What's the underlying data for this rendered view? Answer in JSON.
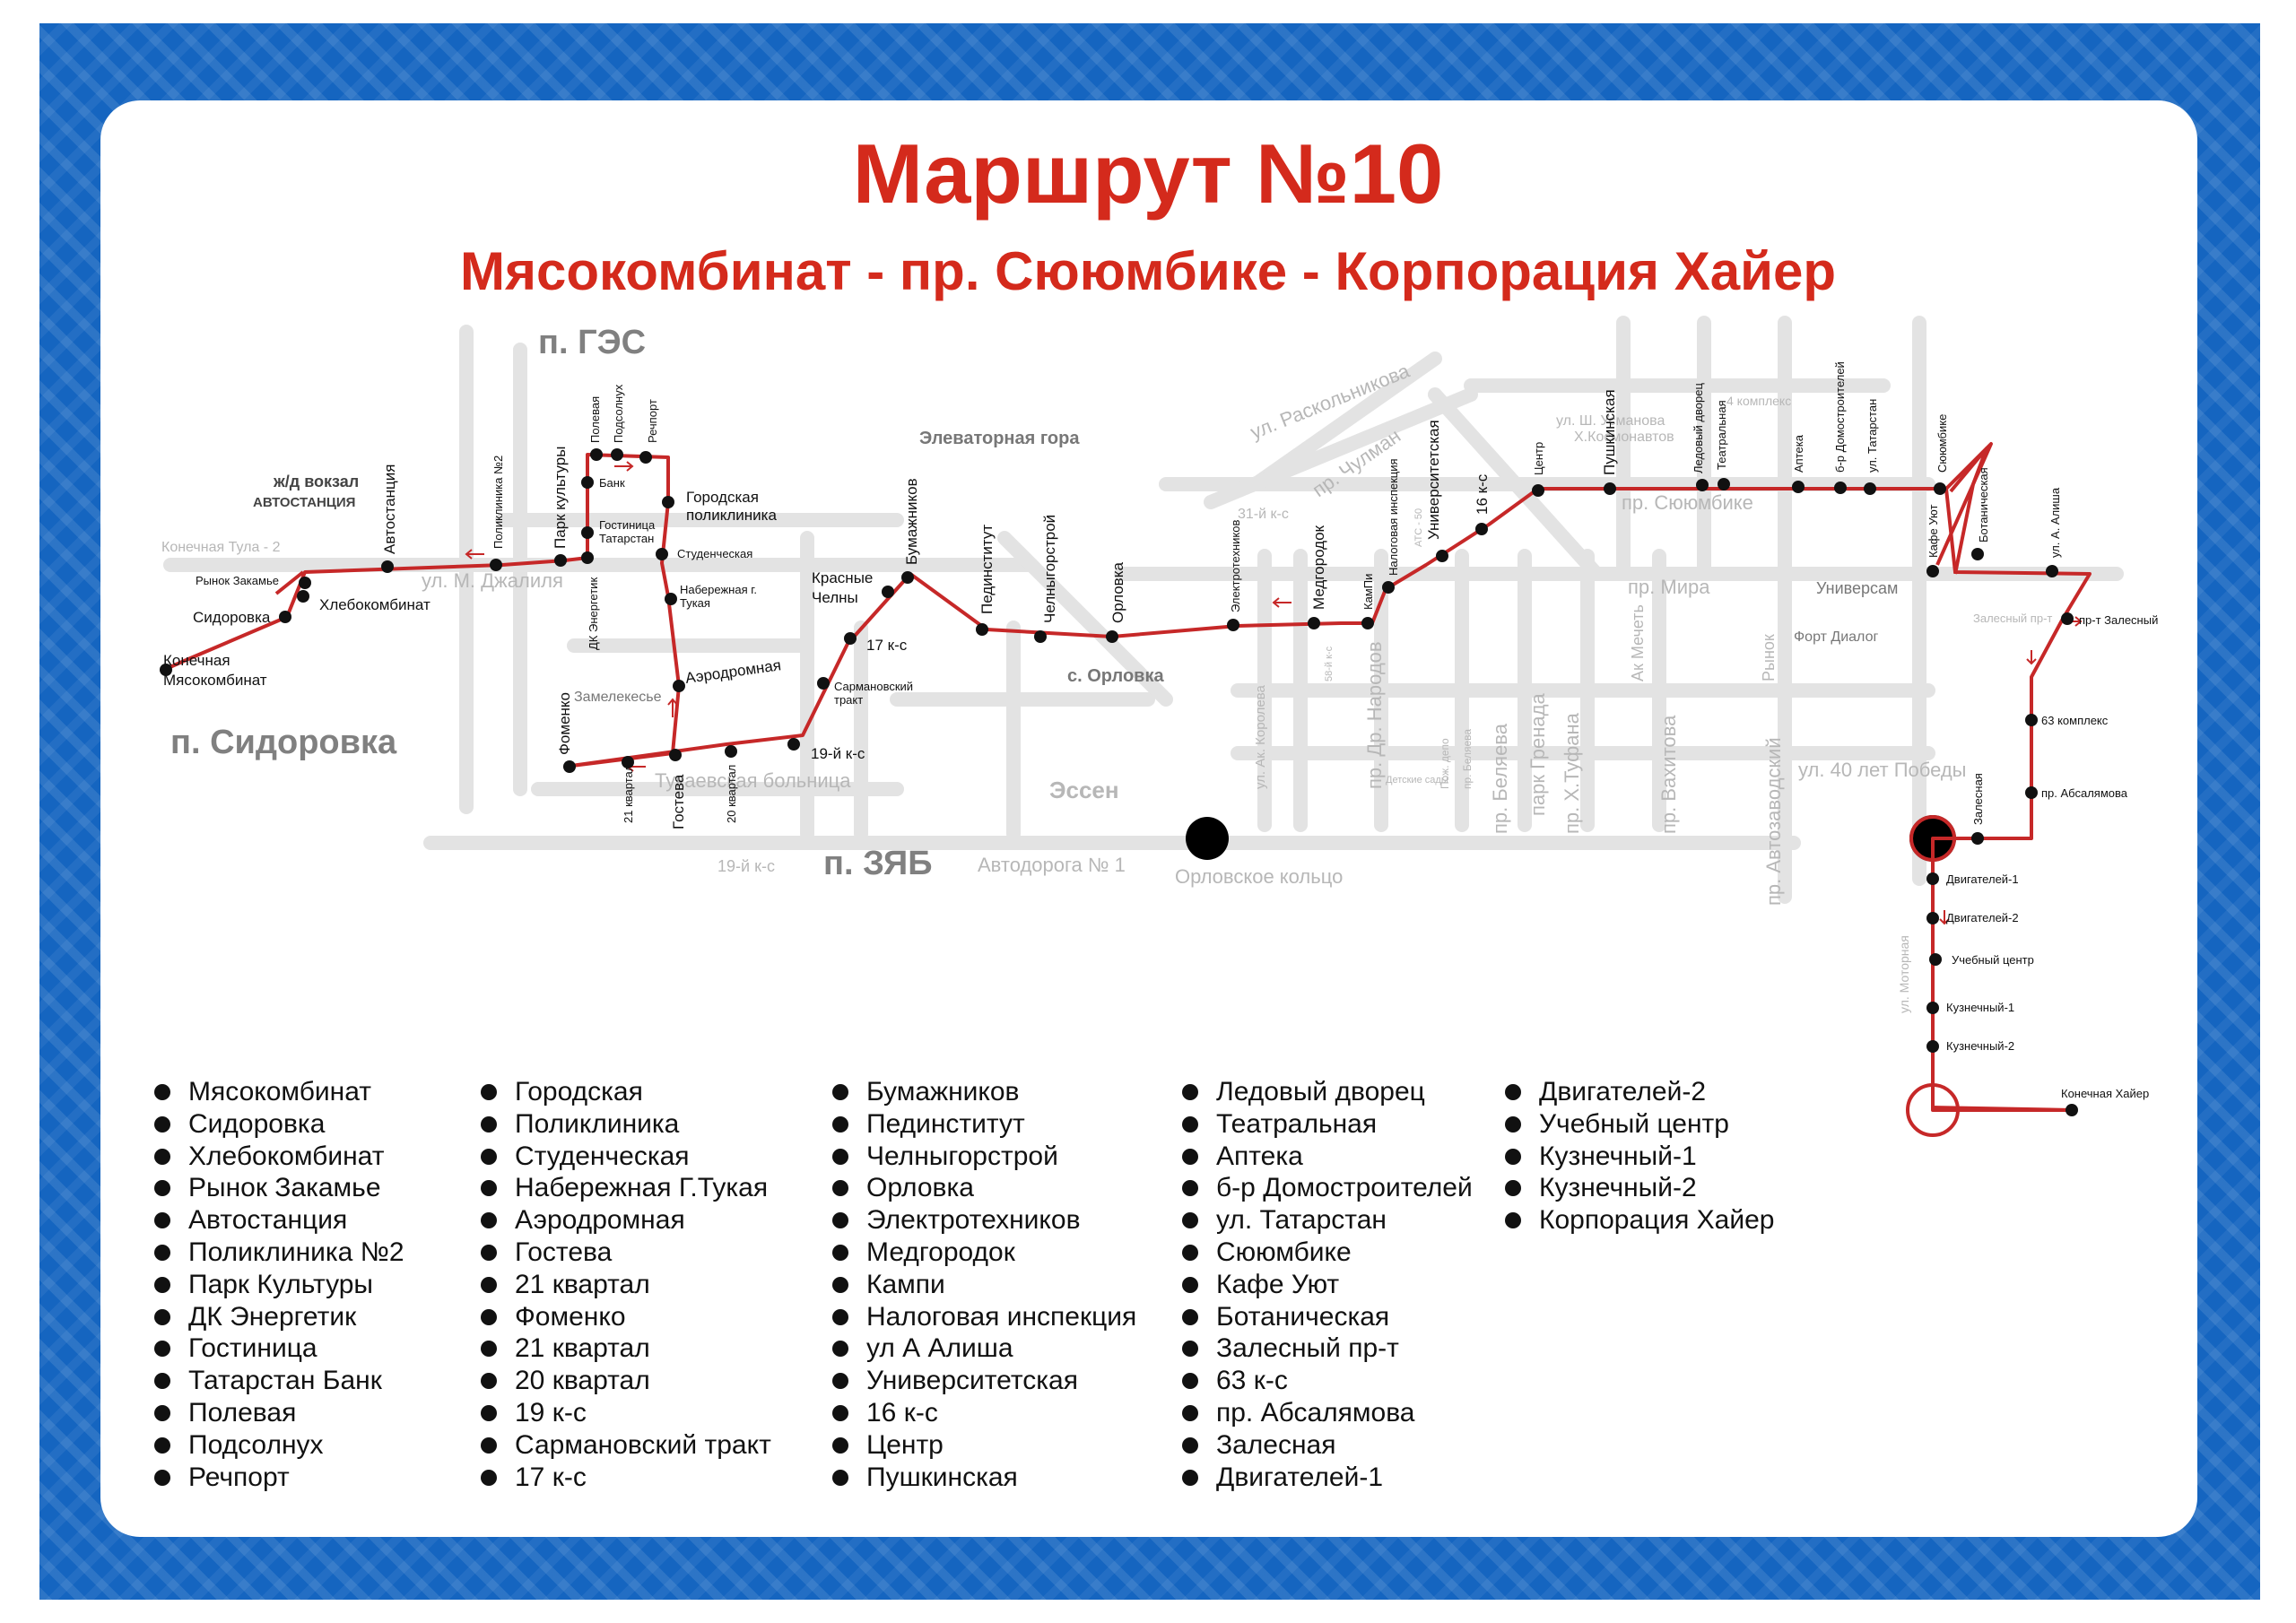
{
  "title": "Маршрут №10",
  "subtitle": "Мясокомбинат - пр. Сююмбике - Корпорация Хайер",
  "districts": {
    "ges": "п. ГЭС",
    "sidorovka": "п. Сидоровка",
    "zyab": "п. ЗЯБ"
  },
  "places": {
    "elevator_gora": "Элеваторная гора",
    "zhd_vokzal": "ж/д вокзал",
    "avtostanciya_caps": "АВТОСТАНЦИЯ",
    "s_orlovka": "с. Орловка",
    "essen": "Эссен",
    "orlovskoe_koltso": "Орловское кольцо",
    "zamelekesye": "Замелекесье",
    "tukaevskaya_bolnica": "Тукаевская больница",
    "konechnaya_tula": "Конечная Тула - 2",
    "avtodoroga": "Автодорога № 1",
    "k19_gray": "19-й к-с",
    "fort_dialog": "Форт Диалог",
    "ats50": "АТС - 50",
    "k58": "58-й к-с",
    "k31": "31-й к-с",
    "k4": "4 комплекс",
    "depo": "Пож. депо",
    "detskie_sady": "Детские сады"
  },
  "streets": {
    "m_dzhalilya": "ул. М. Джалиля",
    "raskolnikova": "ул. Раскольникова",
    "chulman": "пр. Чулман",
    "syuyumbike": "пр. Сююмбике",
    "mira": "пр. Мира",
    "usmanova": "ул. Ш. Усманова",
    "kosmonavtov": "Х.Космонавтов",
    "let40": "ул. 40 лет Победы",
    "motornaya": "ул. Моторная",
    "zalesnyi_gray": "Залесный пр-т",
    "dr_narodov": "пр. Др. Народов",
    "korolova": "ул. Ак. Королева",
    "belyaeva": "пр. Беляева",
    "belyaeva_small": "пр. Беляева",
    "park_grenada": "парк Гренада",
    "tufana": "пр. Х.Туфана",
    "vahitova": "пр. Вахитова",
    "ak_mechet": "Ак Мечеть",
    "avtozavodskiy": "пр. Автозаводский",
    "rynok": "Рынок",
    "universam": "Универсам"
  },
  "stops_map": {
    "myasokombinat": "Конечная\nМясокомбинат",
    "sidorovka": "Сидоровка",
    "hlebokombinat": "Хлебокомбинат",
    "rynok_zakamye": "Рынок Закамье",
    "avtostanciya": "Автостанция",
    "poliklinika2": "Поликлиника №2",
    "park_kultury": "Парк культуры",
    "dk_energetik": "ДК Энергетик",
    "gostinica": "Гостиница Татарстан",
    "bank": "Банк",
    "polevaya": "Полевая",
    "podsolnuh": "Подсолнух",
    "rechport": "Речпорт",
    "gor_poliklinika": "Городская поликлиника",
    "studencheskaya": "Студенческая",
    "nab_tukaya": "Набережная г. Тукая",
    "aerodromnaya": "Аэродромная",
    "gosteva": "Гостева",
    "kv21": "21 квартал",
    "kv20": "20 квартал",
    "fomenko": "Фоменко",
    "k19": "19-й к-с",
    "sarmanovskiy": "Сармановский тракт",
    "k17": "17 к-с",
    "krasnye_chelny": "Красные Челны",
    "bumazhnikov": "Бумажников",
    "pedinstitut": "Пединститут",
    "chelnygorstroy": "Челныгорстрой",
    "orlovka": "Орловка",
    "elektrotehnikov": "Электротехников",
    "medgorodok": "Медгородок",
    "kampi": "КамПи",
    "nalogovaya": "Налоговая инспекция",
    "universitetskaya": "Университетская",
    "k16": "16 к-с",
    "centr": "Центр",
    "pushkinskaya": "Пушкинская",
    "ledovyi": "Ледовый дворец",
    "teatralnaya": "Театральная",
    "apteka": "Аптека",
    "domostroiteley": "б-р Домостроителей",
    "tatarstan": "ул. Татарстан",
    "syuyumbike": "Сююмбике",
    "kafe_uyut": "Кафе Уют",
    "botanicheskaya": "Ботаническая",
    "alisha": "ул. А. Алиша",
    "zalesnyi": "пр-т Залесный",
    "k63": "63 комплекс",
    "absalyamova": "пр. Абсалямова",
    "zalesnaya": "Залесная",
    "dvig1": "Двигателей-1",
    "dvig2": "Двигателей-2",
    "uchebnyi": "Учебный центр",
    "kuz1": "Кузнечный-1",
    "kuz2": "Кузнечный-2",
    "haier": "Конечная Хайер"
  },
  "legend": {
    "col1": [
      "Мясокомбинат",
      "Сидоровка",
      "Хлебокомбинат",
      "Рынок Закамье",
      "Автостанция",
      "Поликлиника №2",
      "Парк Культуры",
      "ДК Энергетик",
      "Гостиница",
      "Татарстан Банк",
      "Полевая",
      "Подсолнух",
      "Речпорт"
    ],
    "col2": [
      "Городская",
      "Поликлиника",
      "Студенческая",
      "Набережная Г.Тукая",
      "Аэродромная",
      "Гостева",
      "21 квартал",
      "Фоменко",
      "21 квартал",
      "20 квартал",
      "19 к-с",
      "Сармановский тракт",
      "17 к-с"
    ],
    "col3": [
      "Бумажников",
      "Пединститут",
      "Челныгорстрой",
      "Орловка",
      "Электротехников",
      "Медгородок",
      "Кампи",
      "Налоговая инспекция",
      "ул А Алиша",
      "Университетская",
      "16 к-с",
      "Центр",
      "Пушкинская"
    ],
    "col4": [
      "Ледовый дворец",
      "Театральная",
      "Аптека",
      "б-р Домостроителей",
      "ул. Татарстан",
      "Сююмбике",
      "Кафе Уют",
      "Ботаническая",
      "Залесный пр-т",
      "63 к-с",
      "пр. Абсалямова",
      "Залесная",
      "Двигателей-1"
    ],
    "col5": [
      "Двигателей-2",
      "Учебный центр",
      "Кузнечный-1",
      "Кузнечный-2",
      "Корпорация Хайер"
    ]
  }
}
